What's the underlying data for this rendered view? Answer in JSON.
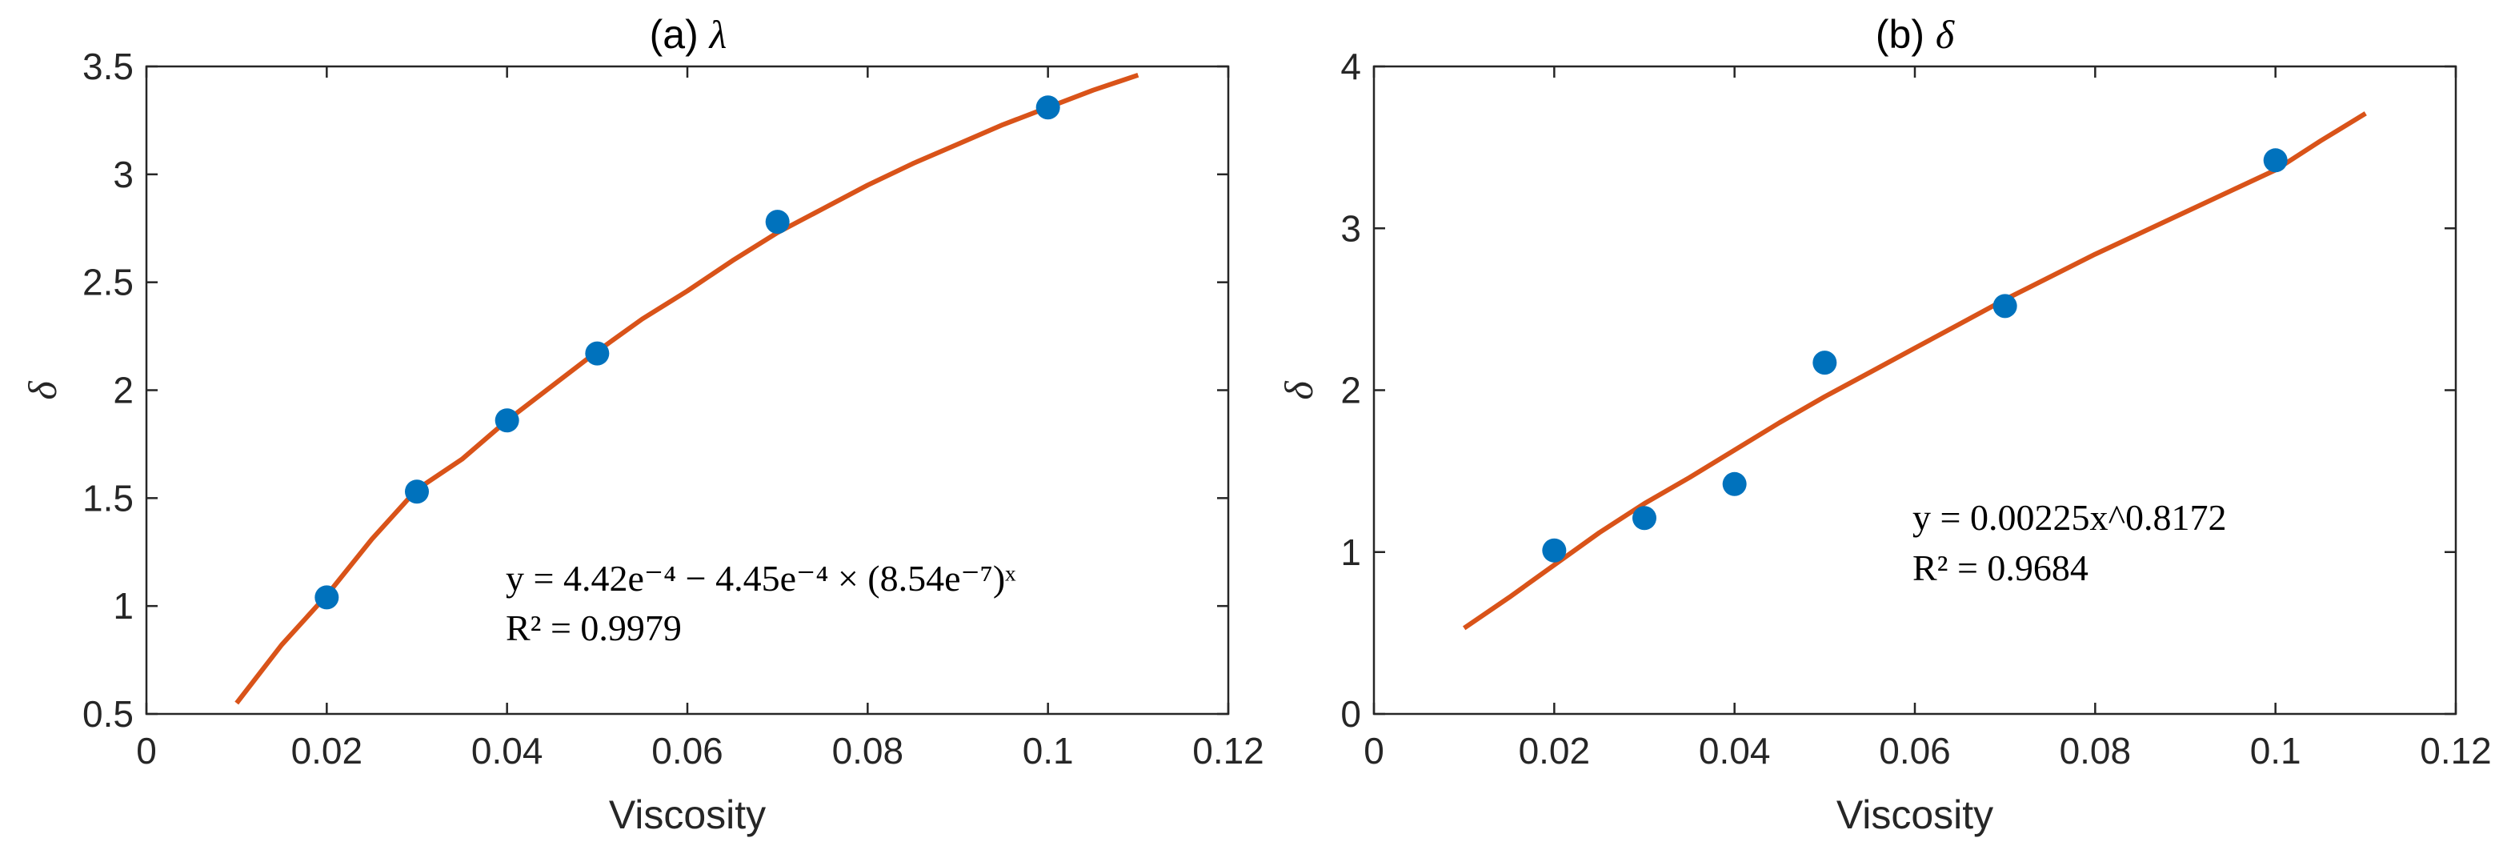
{
  "chart_data": [
    {
      "type": "scatter",
      "title_prefix": "(a)",
      "title_symbol": "λ",
      "xlabel": "Viscosity",
      "ylabel": "δ",
      "xlim": [
        0,
        0.12
      ],
      "ylim": [
        0.5,
        3.5
      ],
      "xticks": [
        0,
        0.02,
        0.04,
        0.06,
        0.08,
        0.1,
        0.12
      ],
      "yticks": [
        0.5,
        1,
        1.5,
        2,
        2.5,
        3,
        3.5
      ],
      "xtick_labels": [
        "0",
        "0.02",
        "0.04",
        "0.06",
        "0.08",
        "0.1",
        "0.12"
      ],
      "ytick_labels": [
        "0.5",
        "1",
        "1.5",
        "2",
        "2.5",
        "3",
        "3.5"
      ],
      "grid": false,
      "series": [
        {
          "kind": "points",
          "color": "#0072BD",
          "x": [
            0.02,
            0.03,
            0.04,
            0.05,
            0.07,
            0.1
          ],
          "y": [
            1.04,
            1.53,
            1.86,
            2.17,
            2.78,
            3.31
          ]
        },
        {
          "kind": "fit",
          "color": "#D95319",
          "x_range": [
            0.01,
            0.11
          ],
          "curve": [
            [
              0.01,
              0.55
            ],
            [
              0.015,
              0.82
            ],
            [
              0.02,
              1.05
            ],
            [
              0.025,
              1.31
            ],
            [
              0.03,
              1.54
            ],
            [
              0.035,
              1.68
            ],
            [
              0.04,
              1.86
            ],
            [
              0.045,
              2.02
            ],
            [
              0.05,
              2.18
            ],
            [
              0.055,
              2.33
            ],
            [
              0.06,
              2.46
            ],
            [
              0.065,
              2.6
            ],
            [
              0.07,
              2.73
            ],
            [
              0.075,
              2.84
            ],
            [
              0.08,
              2.95
            ],
            [
              0.085,
              3.05
            ],
            [
              0.09,
              3.14
            ],
            [
              0.095,
              3.23
            ],
            [
              0.1,
              3.31
            ],
            [
              0.105,
              3.39
            ],
            [
              0.11,
              3.46
            ]
          ]
        }
      ],
      "annotation": {
        "line1": "y = 4.42e⁻⁴ − 4.45e⁻⁴ × (8.54e⁻⁷)ˣ",
        "line2": "R² = 0.9979"
      }
    },
    {
      "type": "scatter",
      "title_prefix": "(b)",
      "title_symbol": "δ",
      "xlabel": "Viscosity",
      "ylabel": "δ",
      "xlim": [
        0,
        0.12
      ],
      "ylim": [
        0,
        4
      ],
      "xticks": [
        0,
        0.02,
        0.04,
        0.06,
        0.08,
        0.1,
        0.12
      ],
      "yticks": [
        0,
        1,
        2,
        3,
        4
      ],
      "xtick_labels": [
        "0",
        "0.02",
        "0.04",
        "0.06",
        "0.08",
        "0.1",
        "0.12"
      ],
      "ytick_labels": [
        "0",
        "1",
        "2",
        "3",
        "4"
      ],
      "grid": false,
      "series": [
        {
          "kind": "points",
          "color": "#0072BD",
          "x": [
            0.02,
            0.03,
            0.04,
            0.05,
            0.07,
            0.1
          ],
          "y": [
            1.01,
            1.21,
            1.42,
            2.17,
            2.52,
            3.42
          ]
        },
        {
          "kind": "fit",
          "color": "#D95319",
          "x_range": [
            0.01,
            0.11
          ],
          "curve": [
            [
              0.01,
              0.53
            ],
            [
              0.015,
              0.72
            ],
            [
              0.02,
              0.92
            ],
            [
              0.025,
              1.12
            ],
            [
              0.03,
              1.3
            ],
            [
              0.035,
              1.46
            ],
            [
              0.04,
              1.63
            ],
            [
              0.045,
              1.8
            ],
            [
              0.05,
              1.96
            ],
            [
              0.055,
              2.11
            ],
            [
              0.06,
              2.26
            ],
            [
              0.065,
              2.41
            ],
            [
              0.07,
              2.56
            ],
            [
              0.075,
              2.7
            ],
            [
              0.08,
              2.84
            ],
            [
              0.085,
              2.97
            ],
            [
              0.09,
              3.1
            ],
            [
              0.095,
              3.23
            ],
            [
              0.1,
              3.36
            ],
            [
              0.105,
              3.54
            ],
            [
              0.11,
              3.71
            ]
          ]
        }
      ],
      "annotation": {
        "line1": "y = 0.00225x^0.8172",
        "line2": "R² = 0.9684"
      }
    }
  ]
}
